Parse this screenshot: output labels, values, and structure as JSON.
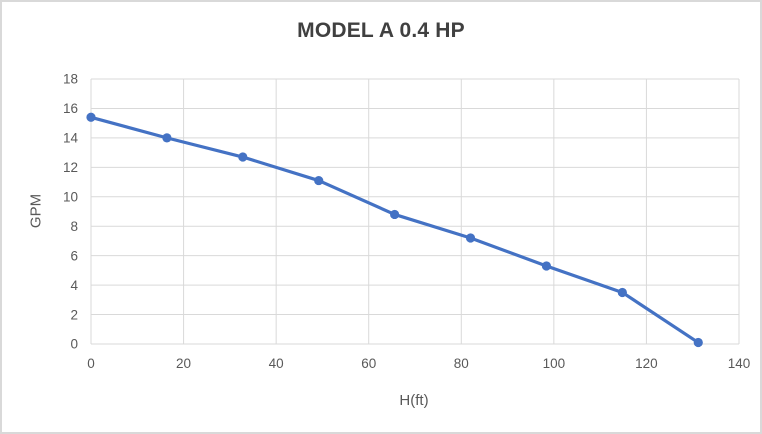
{
  "chart_data": {
    "type": "line",
    "title": "MODEL A 0.4 HP",
    "xlabel": "H(ft)",
    "ylabel": "GPM",
    "x": [
      0,
      16.4,
      32.8,
      49.2,
      65.6,
      82,
      98.4,
      114.8,
      131.2
    ],
    "y": [
      15.4,
      14,
      12.7,
      11.1,
      8.8,
      7.2,
      5.3,
      3.5,
      0.1
    ],
    "xlim": [
      0,
      140
    ],
    "ylim": [
      0,
      18
    ],
    "x_ticks": [
      0,
      20,
      40,
      60,
      80,
      100,
      120,
      140
    ],
    "y_ticks": [
      0,
      2,
      4,
      6,
      8,
      10,
      12,
      14,
      16,
      18
    ],
    "grid": true,
    "legend": "none",
    "colors": {
      "line": "#4472C4",
      "marker": "#4472C4",
      "gridline": "#D9D9D9",
      "tick_label": "#595959",
      "axis_title": "#595959",
      "chart_title": "#404040",
      "background": "#FFFFFF",
      "border": "#D9D9D9"
    }
  }
}
